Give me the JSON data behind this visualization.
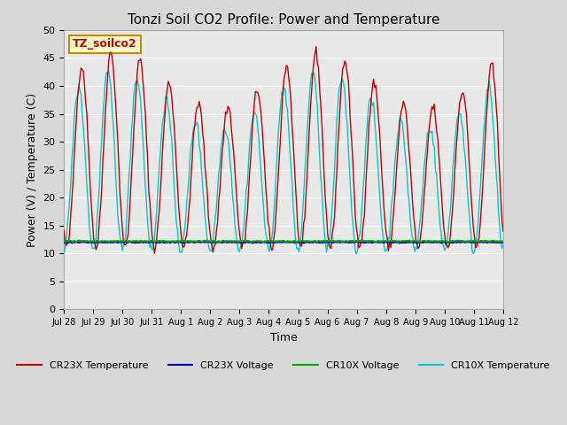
{
  "title": "Tonzi Soil CO2 Profile: Power and Temperature",
  "xlabel": "Time",
  "ylabel": "Power (V) / Temperature (C)",
  "ylim": [
    0,
    50
  ],
  "yticks": [
    0,
    5,
    10,
    15,
    20,
    25,
    30,
    35,
    40,
    45,
    50
  ],
  "background_color": "#d8d8d8",
  "plot_bg_color": "#e8e8e8",
  "cr23x_temp_color": "#cc0000",
  "cr23x_volt_color": "#0000cc",
  "cr10x_volt_color": "#00aa00",
  "cr10x_temp_color": "#00cccc",
  "annotation_text": "TZ_soilco2",
  "annotation_bg": "#ffffcc",
  "annotation_border": "#cc8800",
  "x_tick_labels": [
    "Jul 28",
    "Jul 29",
    "Jul 30",
    "Jul 31",
    "Aug 1",
    "Aug 2",
    "Aug 3",
    "Aug 4",
    "Aug 5",
    "Aug 6",
    "Aug 7",
    "Aug 8",
    "Aug 9",
    "Aug 10",
    "Aug 11",
    "Aug 12"
  ],
  "voltage_cr23x": 12.0,
  "voltage_cr10x": 12.2,
  "legend_entries": [
    "CR23X Temperature",
    "CR23X Voltage",
    "CR10X Voltage",
    "CR10X Temperature"
  ],
  "legend_colors": [
    "#cc0000",
    "#0000cc",
    "#00aa00",
    "#00cccc"
  ]
}
